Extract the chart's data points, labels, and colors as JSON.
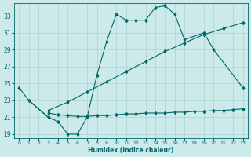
{
  "xlabel": "Humidex (Indice chaleur)",
  "bg_color": "#cceaea",
  "grid_color": "#aad4d4",
  "line_color": "#006666",
  "xlim": [
    -0.5,
    23.5
  ],
  "ylim": [
    18.5,
    34.5
  ],
  "xticks": [
    0,
    1,
    2,
    3,
    4,
    5,
    6,
    7,
    8,
    9,
    10,
    11,
    12,
    13,
    14,
    15,
    16,
    17,
    18,
    19,
    20,
    21,
    22,
    23
  ],
  "yticks": [
    19,
    21,
    23,
    25,
    27,
    29,
    31,
    33
  ],
  "curve1_x": [
    0,
    1,
    3,
    4,
    5,
    6,
    7,
    8,
    9,
    10,
    11,
    12,
    13,
    14,
    15,
    16,
    17,
    19,
    20,
    23
  ],
  "curve1_y": [
    24.5,
    23.0,
    21.0,
    20.5,
    19.0,
    19.0,
    21.0,
    26.0,
    30.0,
    33.2,
    32.5,
    32.5,
    32.5,
    34.0,
    34.2,
    33.2,
    30.2,
    31.0,
    29.0,
    24.5
  ],
  "curve2_x": [
    3,
    4,
    5,
    6,
    7,
    8,
    9,
    10,
    11,
    12,
    13,
    14,
    15,
    16,
    17,
    18,
    19,
    20,
    21,
    22,
    23
  ],
  "curve2_y": [
    21.5,
    21.3,
    21.2,
    21.1,
    21.1,
    21.2,
    21.2,
    21.3,
    21.4,
    21.4,
    21.5,
    21.5,
    21.5,
    21.6,
    21.6,
    21.7,
    21.7,
    21.8,
    21.8,
    21.9,
    22.0
  ],
  "curve3_x": [
    3,
    5,
    7,
    9,
    11,
    13,
    15,
    17,
    19,
    21,
    23
  ],
  "curve3_y": [
    21.8,
    22.8,
    24.0,
    25.2,
    26.4,
    27.6,
    28.8,
    29.8,
    30.8,
    31.5,
    32.2
  ]
}
